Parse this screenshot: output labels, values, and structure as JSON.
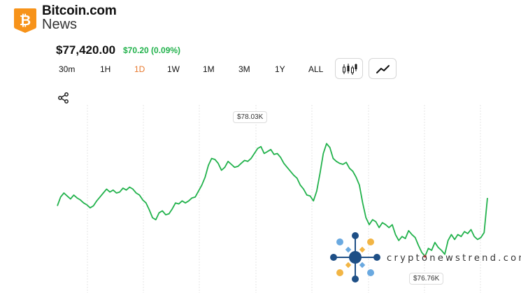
{
  "brand": {
    "name": "Bitcoin.com",
    "sub": "News",
    "logo_icon": "bitcoin-icon",
    "logo_color": "#f7931a"
  },
  "price": {
    "value": "$77,420.00",
    "change": "$70.20 (0.09%)",
    "change_color": "#22b24c"
  },
  "timeframes": [
    {
      "label": "30m",
      "active": false
    },
    {
      "label": "1H",
      "active": false
    },
    {
      "label": "1D",
      "active": true
    },
    {
      "label": "1W",
      "active": false
    },
    {
      "label": "1M",
      "active": false
    },
    {
      "label": "3M",
      "active": false
    },
    {
      "label": "1Y",
      "active": false
    },
    {
      "label": "ALL",
      "active": false
    }
  ],
  "chart_controls": {
    "candlestick_icon": "candlestick-icon",
    "line_icon": "line-chart-icon",
    "share_icon": "share-icon"
  },
  "chart_data": {
    "type": "line",
    "series_color": "#22b24c",
    "grid": "vertical",
    "high_label": "$78.03K",
    "low_label": "$76.76K",
    "ylim": [
      76700,
      78150
    ],
    "values": [
      77270,
      77360,
      77400,
      77370,
      77340,
      77380,
      77350,
      77330,
      77300,
      77280,
      77250,
      77270,
      77320,
      77360,
      77400,
      77440,
      77410,
      77430,
      77400,
      77410,
      77450,
      77430,
      77460,
      77440,
      77400,
      77380,
      77330,
      77300,
      77230,
      77150,
      77130,
      77200,
      77220,
      77180,
      77190,
      77240,
      77300,
      77290,
      77320,
      77300,
      77320,
      77350,
      77360,
      77420,
      77480,
      77560,
      77680,
      77750,
      77740,
      77700,
      77630,
      77660,
      77720,
      77690,
      77660,
      77670,
      77700,
      77730,
      77720,
      77750,
      77800,
      77850,
      77870,
      77800,
      77820,
      77840,
      77790,
      77800,
      77760,
      77700,
      77660,
      77620,
      77580,
      77550,
      77480,
      77440,
      77380,
      77370,
      77320,
      77420,
      77600,
      77800,
      77900,
      77860,
      77750,
      77720,
      77700,
      77690,
      77710,
      77650,
      77620,
      77560,
      77480,
      77300,
      77150,
      77080,
      77130,
      77110,
      77050,
      77100,
      77080,
      77050,
      77080,
      76980,
      76920,
      76960,
      76940,
      77020,
      76980,
      76950,
      76870,
      76800,
      76760,
      76840,
      76820,
      76900,
      76850,
      76820,
      76780,
      76920,
      76980,
      76930,
      76980,
      76960,
      77010,
      76990,
      77030,
      76960,
      76930,
      76950,
      77000,
      77350
    ]
  },
  "watermark": {
    "text": "cryptonewstrend.com",
    "icon": "network-logo-icon"
  }
}
